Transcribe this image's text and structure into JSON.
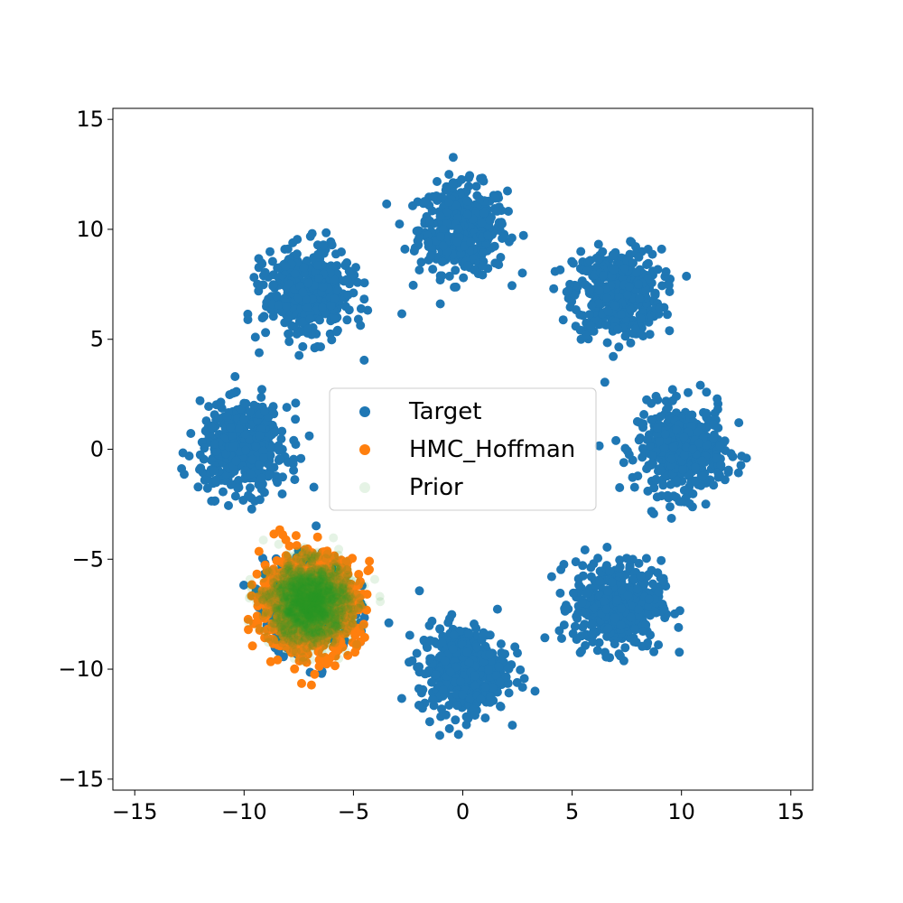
{
  "chart_data": {
    "type": "scatter",
    "title": "",
    "xlabel": "",
    "ylabel": "",
    "xlim": [
      -16,
      16
    ],
    "ylim": [
      -15.5,
      15.5
    ],
    "x_ticks": [
      -15,
      -10,
      -5,
      0,
      5,
      10,
      15
    ],
    "y_ticks": [
      -15,
      -10,
      -5,
      0,
      5,
      10,
      15
    ],
    "x_tick_labels": [
      "−15",
      "−10",
      "−5",
      "0",
      "5",
      "10",
      "15"
    ],
    "y_tick_labels": [
      "−15",
      "−10",
      "−5",
      "0",
      "5",
      "10",
      "15"
    ],
    "grid": false,
    "legend_placement": "center",
    "series": [
      {
        "name": "Target",
        "color": "#1f77b4",
        "kind": "gaussian-mixture",
        "std": 1,
        "points_per_component": 450,
        "components": [
          {
            "x": 0,
            "y": 10
          },
          {
            "x": 7.07,
            "y": 7.07
          },
          {
            "x": 10,
            "y": 0
          },
          {
            "x": 7.07,
            "y": -7.07
          },
          {
            "x": 0,
            "y": -10
          },
          {
            "x": -7.07,
            "y": -7.07
          },
          {
            "x": -10,
            "y": 0
          },
          {
            "x": -7.07,
            "y": 7.07
          }
        ]
      },
      {
        "name": "HMC_Hoffman",
        "color": "#ff7f0e",
        "kind": "gaussian-cluster",
        "center": {
          "x": -7,
          "y": -7
        },
        "std": 1.1,
        "points": 900
      },
      {
        "name": "Prior",
        "color": "#2ca02c",
        "kind": "gaussian-cluster",
        "center": {
          "x": -7,
          "y": -7
        },
        "std": 0.9,
        "points": 1400,
        "alpha": 0.12
      }
    ]
  }
}
